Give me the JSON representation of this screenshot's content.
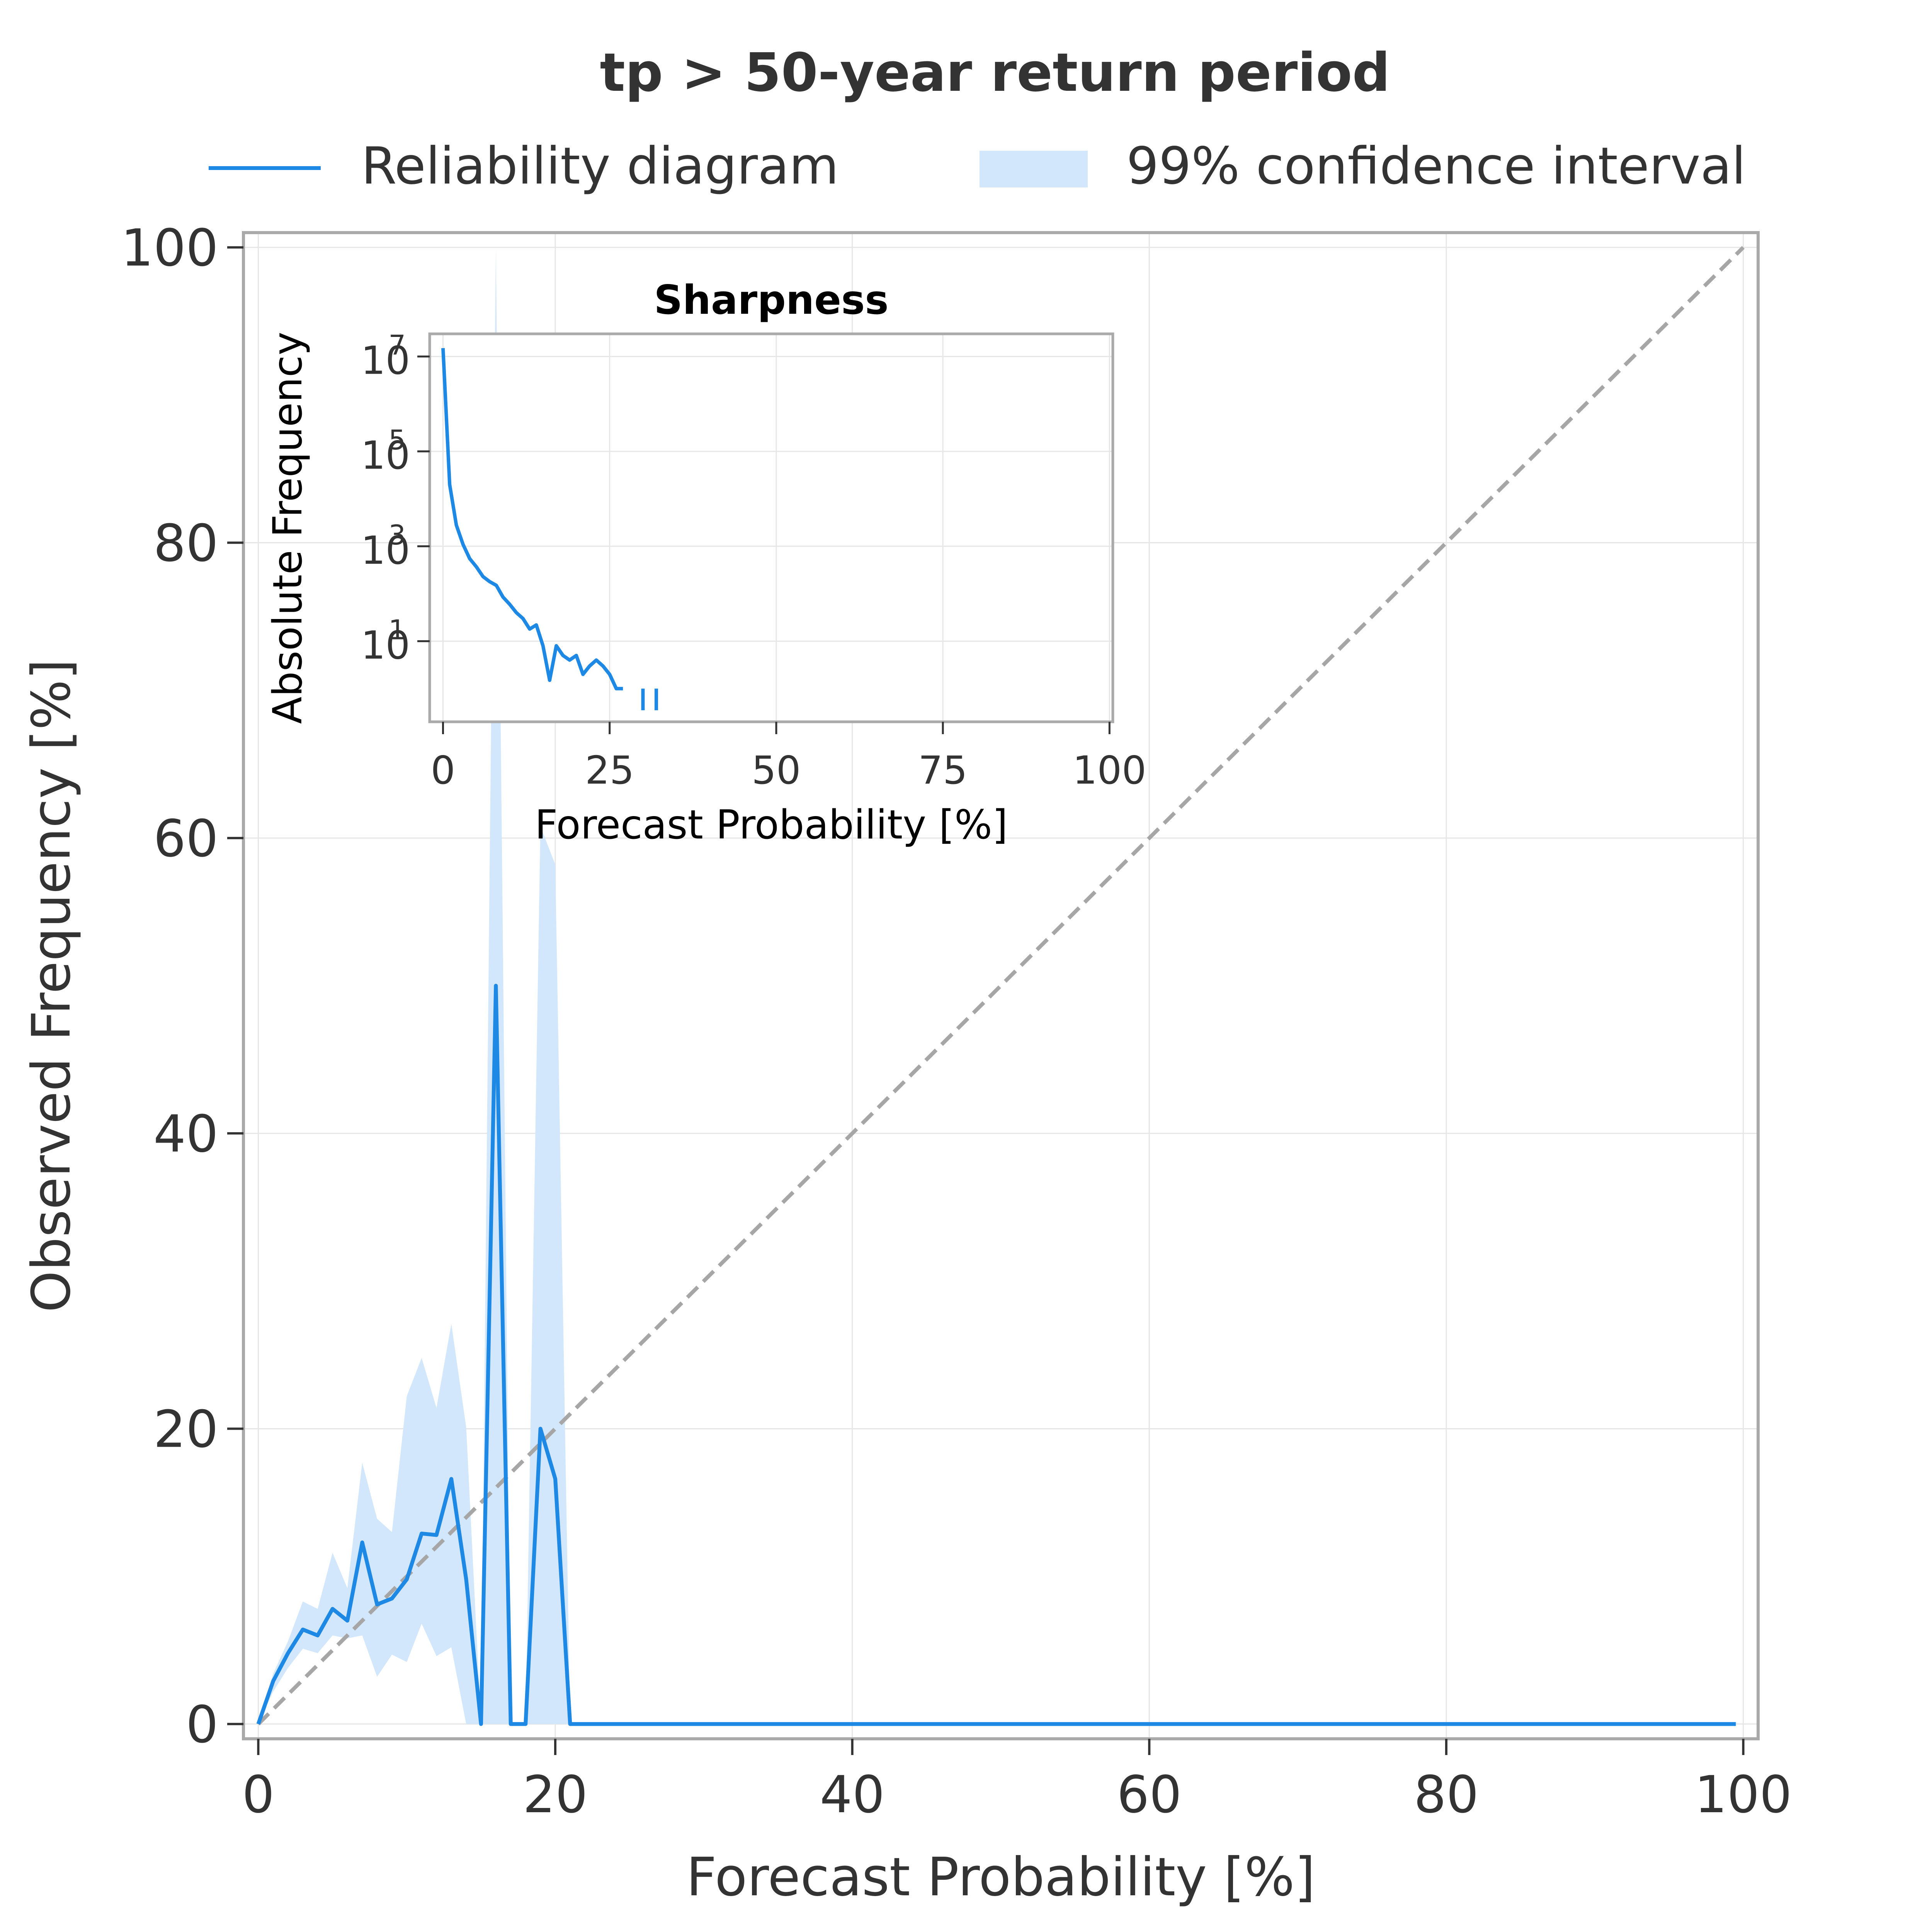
{
  "title": "tp > 50-year return period",
  "legend": {
    "line_label": "Reliability diagram",
    "band_label": "99% confidence interval",
    "placement": "top-center, above axes, two columns"
  },
  "colors": {
    "line": "#1e88e5",
    "band": "#d2e7fb",
    "diagonal": "#a6a6a6",
    "grid": "#e6e6e6",
    "axes": "#aaaaaa",
    "text": "#333333"
  },
  "chart_data": [
    {
      "type": "line",
      "title": "tp > 50-year return period",
      "xlabel": "Forecast Probability [%]",
      "ylabel": "Observed Frequency [%]",
      "xlim": [
        -1,
        101
      ],
      "ylim": [
        -1,
        101
      ],
      "xticks": [
        0,
        20,
        40,
        60,
        80,
        100
      ],
      "yticks": [
        0,
        20,
        40,
        60,
        80,
        100
      ],
      "grid": true,
      "reference_line": {
        "name": "perfect reliability",
        "x": [
          0,
          100
        ],
        "y": [
          0,
          100
        ],
        "style": "dashed"
      },
      "series": [
        {
          "name": "Reliability diagram",
          "x": [
            0,
            1,
            2,
            3,
            4,
            5,
            6,
            7,
            8,
            9,
            10,
            11,
            12,
            13,
            14,
            15,
            16,
            17,
            18,
            19,
            20,
            21,
            22,
            30,
            40,
            50,
            60,
            70,
            80,
            90,
            99.5
          ],
          "y": [
            0,
            2.9,
            4.8,
            6.4,
            6.0,
            7.8,
            7.0,
            12.3,
            8.1,
            8.5,
            9.8,
            12.9,
            12.8,
            16.6,
            9.8,
            0,
            50,
            0,
            0,
            20,
            16.6,
            0,
            0,
            0,
            0,
            0,
            0,
            0,
            0,
            0,
            0
          ]
        }
      ],
      "confidence_band": {
        "name": "99% confidence interval",
        "x": [
          0,
          1,
          2,
          3,
          4,
          5,
          6,
          7,
          8,
          9,
          10,
          11,
          12,
          13,
          14,
          15,
          16,
          17,
          18,
          19,
          20,
          21
        ],
        "lower": [
          0,
          2.2,
          3.8,
          5.1,
          4.8,
          6.0,
          5.8,
          6.0,
          3.2,
          4.7,
          4.2,
          6.8,
          4.6,
          5.2,
          0,
          0,
          0,
          0,
          0,
          0,
          0,
          0
        ],
        "upper": [
          0,
          3.4,
          5.6,
          8.3,
          7.8,
          11.6,
          9.2,
          17.7,
          13.9,
          13.0,
          22.2,
          24.8,
          21.4,
          27.1,
          20.1,
          0,
          99.9,
          0,
          0,
          60.8,
          58.2,
          0
        ]
      }
    },
    {
      "type": "line",
      "title": "Sharpness",
      "xlabel": "Forecast Probability [%]",
      "ylabel": "Absolute Frequency",
      "xlim": [
        -2,
        100.5
      ],
      "ylim": [
        0.2,
        30000000
      ],
      "yscale": "log",
      "xticks": [
        0,
        25,
        50,
        75,
        100
      ],
      "yticks": [
        10,
        1000,
        100000,
        10000000
      ],
      "ytick_labels": [
        {
          "base": "10",
          "exp": "1"
        },
        {
          "base": "10",
          "exp": "3"
        },
        {
          "base": "10",
          "exp": "5"
        },
        {
          "base": "10",
          "exp": "7"
        }
      ],
      "grid": true,
      "series": [
        {
          "name": "Absolute Frequency",
          "segments": [
            {
              "x": [
                0,
                1,
                2,
                3,
                4,
                5,
                6,
                7,
                8,
                9,
                10,
                11,
                12,
                13,
                14,
                15,
                16,
                17,
                18,
                19,
                20,
                21,
                22,
                23,
                24,
                25,
                26,
                27
              ],
              "y": [
                15000000,
                20000,
                2800,
                1100,
                550,
                370,
                230,
                180,
                150,
                85,
                60,
                40,
                30,
                18,
                22,
                8,
                1.5,
                8,
                5,
                4,
                5,
                2,
                3,
                4,
                3,
                2,
                1,
                1
              ]
            },
            {
              "x": [
                30,
                30
              ],
              "y": [
                0.35,
                1
              ]
            },
            {
              "x": [
                32,
                32
              ],
              "y": [
                0.35,
                1
              ]
            }
          ]
        }
      ]
    }
  ]
}
